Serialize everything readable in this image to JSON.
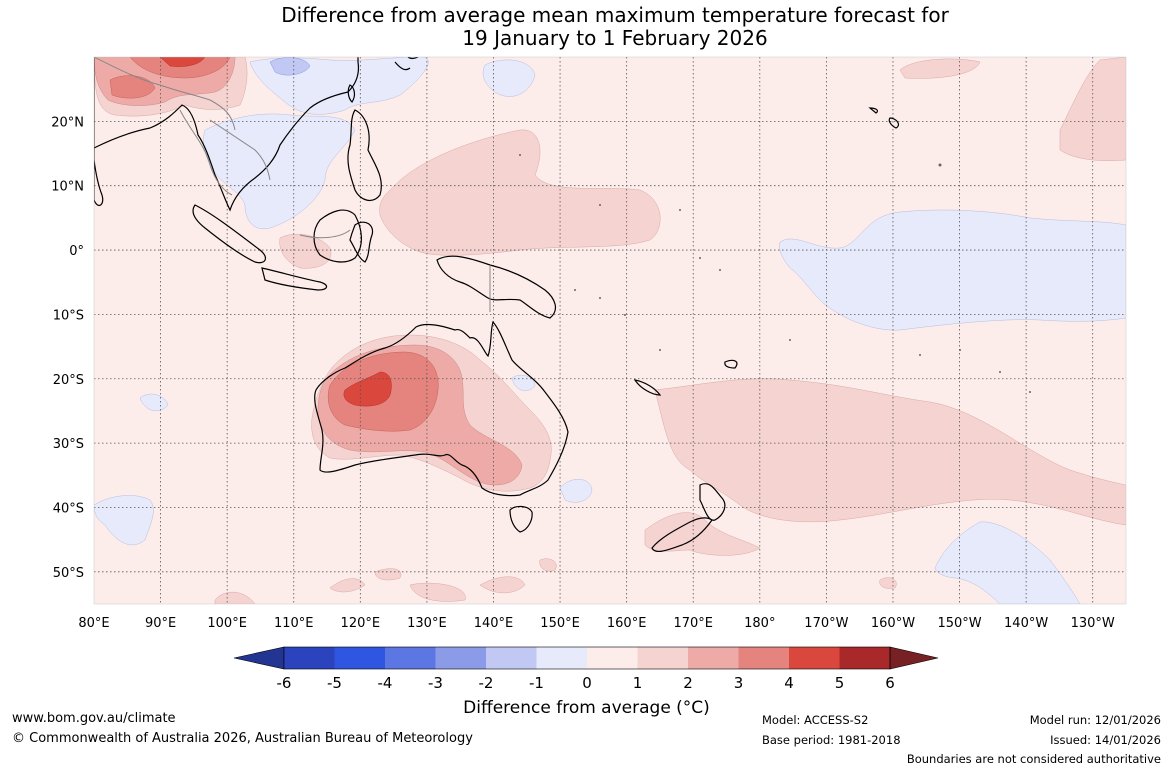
{
  "title": {
    "line1": "Difference from average mean maximum temperature forecast for",
    "line2": "19 January to 1 February 2026"
  },
  "map": {
    "longitude_labels": [
      "80°E",
      "90°E",
      "100°E",
      "110°E",
      "120°E",
      "130°E",
      "140°E",
      "150°E",
      "160°E",
      "170°E",
      "180°",
      "170°W",
      "160°W",
      "150°W",
      "140°W",
      "130°W"
    ],
    "latitude_labels": [
      "20°N",
      "10°N",
      "0°",
      "10°S",
      "20°S",
      "30°S",
      "40°S",
      "50°S"
    ],
    "extent": {
      "lon_min": 80,
      "lon_max": 235,
      "lat_min": -55,
      "lat_max": 30
    },
    "anomaly_regions": [
      {
        "region": "North-west Western Australia interior",
        "anomaly_range": "4 to 5"
      },
      {
        "region": "Central Western Australia",
        "anomaly_range": "3 to 4"
      },
      {
        "region": "South-eastern South Australia / western Victoria",
        "anomaly_range": "2 to 3"
      },
      {
        "region": "Southern China / northern Myanmar",
        "anomaly_range": "3 to 4"
      },
      {
        "region": "Equatorial central Pacific",
        "anomaly_range": "-1 to 0"
      },
      {
        "region": "Southern Vietnam / Gulf of Thailand",
        "anomaly_range": "-1 to 0"
      },
      {
        "region": "Tasman Sea / South-west Pacific",
        "anomaly_range": "1 to 2"
      }
    ]
  },
  "colorbar": {
    "ticks": [
      "-6",
      "-5",
      "-4",
      "-3",
      "-2",
      "-1",
      "0",
      "1",
      "2",
      "3",
      "4",
      "5",
      "6"
    ],
    "colors": [
      "#233593",
      "#2b44bd",
      "#2f56e0",
      "#5c76e3",
      "#8b9be8",
      "#c1c8f3",
      "#e7eafb",
      "#fcecea",
      "#f5d3d1",
      "#edaaa7",
      "#e5847e",
      "#d9473d",
      "#a9282a",
      "#782124"
    ],
    "title": "Difference from average (°C)"
  },
  "footer": {
    "website": "www.bom.gov.au/climate",
    "copyright": "© Commonwealth of Australia 2026, Australian Bureau of Meteorology",
    "model": "Model: ACCESS-S2",
    "base_period": "Base period: 1981-2018",
    "model_run": "Model run: 12/01/2026",
    "issued": "Issued: 14/01/2026",
    "disclaimer": "Boundaries are not considered authoritative"
  }
}
